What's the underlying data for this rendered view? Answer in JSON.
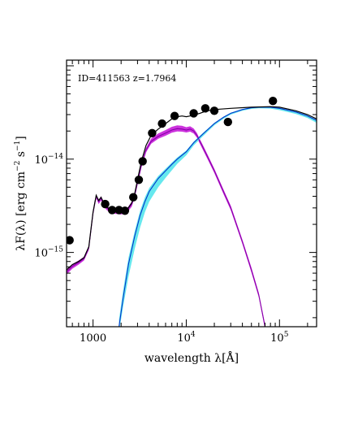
{
  "chart_data": {
    "type": "scatter",
    "title": "",
    "annotation": "ID=411563 z=1.7964",
    "xlabel": {
      "main": "wavelength λ[Å]"
    },
    "ylabel": {
      "main": "λF(λ) [erg cm",
      "sup1": "−2",
      "mid": " s",
      "sup2": "−1",
      "end": "]"
    },
    "x_scale": "log",
    "y_scale": "log",
    "xlim": [
      520,
      250000
    ],
    "ylim": [
      1.6e-16,
      1.15e-13
    ],
    "x_ticks": [
      {
        "value": 1000,
        "base": "1000",
        "exp": ""
      },
      {
        "value": 10000,
        "base": "10",
        "exp": "4"
      },
      {
        "value": 100000,
        "base": "10",
        "exp": "5"
      }
    ],
    "y_ticks": [
      {
        "value": 1e-15,
        "base": "10",
        "exp": "−15"
      },
      {
        "value": 1e-14,
        "base": "10",
        "exp": "−14"
      }
    ],
    "observed_points": {
      "x": [
        560,
        1350,
        1600,
        1900,
        2200,
        2700,
        3100,
        3400,
        4300,
        5500,
        7500,
        12000,
        16000,
        20000,
        28000,
        85000
      ],
      "y": [
        1.35e-15,
        3.3e-15,
        2.85e-15,
        2.85e-15,
        2.8e-15,
        3.9e-15,
        6e-15,
        9.5e-15,
        1.9e-14,
        2.4e-14,
        2.9e-14,
        3.1e-14,
        3.5e-14,
        3.3e-14,
        2.5e-14,
        4.2e-14
      ],
      "color": "#000000"
    },
    "series": [
      {
        "type": "line",
        "color": "#000000",
        "x": [
          520,
          600,
          700,
          800,
          900,
          1000,
          1080,
          1150,
          1220,
          1300,
          1400,
          1500,
          1700,
          2000,
          2300,
          2600,
          2800,
          3000,
          3300,
          3700,
          4200,
          5000,
          6000,
          7000,
          8000,
          9000,
          10000,
          11000,
          12500,
          14000,
          16000,
          20000,
          30000,
          50000,
          80000,
          100000,
          150000,
          200000,
          250000
        ],
        "y": [
          6.5e-16,
          7.4e-16,
          8e-16,
          8.8e-16,
          1.15e-15,
          2.7e-15,
          4.1e-15,
          3.6e-15,
          3.9e-15,
          3.4e-15,
          3.1e-15,
          2.9e-15,
          2.8e-15,
          2.75e-15,
          2.85e-15,
          3.4e-15,
          4.3e-15,
          6e-15,
          9.5e-15,
          1.4e-14,
          1.8e-14,
          2.1e-14,
          2.4e-14,
          2.7e-14,
          2.85e-14,
          2.9e-14,
          2.85e-14,
          2.9e-14,
          3e-14,
          3.1e-14,
          3.25e-14,
          3.4e-14,
          3.5e-14,
          3.6e-14,
          3.65e-14,
          3.6e-14,
          3.3e-14,
          3e-14,
          2.7e-14
        ]
      },
      {
        "type": "band",
        "color": "#cc33dd",
        "line_color": "#8800aa",
        "x": [
          520,
          600,
          700,
          800,
          900,
          1000,
          1080,
          1150,
          1220,
          1300,
          1400,
          1500,
          1700,
          2000,
          2300,
          2600,
          2800,
          3000,
          3300,
          3700,
          4200,
          5000,
          6000,
          7000,
          8000,
          9000,
          10000,
          11000,
          12000,
          13000,
          14000,
          15000,
          17000,
          20000,
          25000,
          30000,
          40000,
          50000,
          60000,
          70000
        ],
        "y": [
          6.2e-16,
          7.1e-16,
          7.8e-16,
          8.6e-16,
          1.12e-15,
          2.65e-15,
          4e-15,
          3.5e-15,
          3.8e-15,
          3.3e-15,
          3e-15,
          2.85e-15,
          2.75e-15,
          2.7e-15,
          2.8e-15,
          3.3e-15,
          4.1e-15,
          5.6e-15,
          8.6e-15,
          1.25e-14,
          1.55e-14,
          1.75e-14,
          1.9e-14,
          2.05e-14,
          2.12e-14,
          2.1e-14,
          2.05e-14,
          2.1e-14,
          2e-14,
          1.8e-14,
          1.55e-14,
          1.35e-14,
          1.05e-14,
          7.5e-15,
          4.5e-15,
          3e-15,
          1.3e-15,
          6.5e-16,
          3.5e-16,
          1.6e-16
        ],
        "y_low": [
          5.8e-16,
          6.7e-16,
          7.4e-16,
          8.2e-16,
          1.06e-15,
          2.5e-15,
          3.8e-15,
          3.3e-15,
          3.6e-15,
          3.1e-15,
          2.85e-15,
          2.7e-15,
          2.6e-15,
          2.55e-15,
          2.65e-15,
          3.1e-15,
          3.9e-15,
          5.3e-15,
          8.1e-15,
          1.18e-14,
          1.46e-14,
          1.65e-14,
          1.78e-14,
          1.92e-14,
          1.98e-14,
          1.97e-14,
          1.93e-14,
          1.97e-14,
          1.88e-14,
          1.7e-14,
          1.46e-14,
          1.27e-14,
          9.9e-15,
          7.1e-15,
          4.25e-15,
          2.83e-15,
          1.23e-15,
          6.1e-16,
          3.3e-16,
          1.5e-16
        ],
        "y_high": [
          6.6e-16,
          7.5e-16,
          8.2e-16,
          9e-16,
          1.18e-15,
          2.8e-15,
          4.2e-15,
          3.7e-15,
          4e-15,
          3.5e-15,
          3.15e-15,
          3e-15,
          2.9e-15,
          2.85e-15,
          2.95e-15,
          3.5e-15,
          4.35e-15,
          5.95e-15,
          9.1e-15,
          1.32e-14,
          1.66e-14,
          1.88e-14,
          2.05e-14,
          2.22e-14,
          2.3e-14,
          2.28e-14,
          2.2e-14,
          2.25e-14,
          2.13e-14,
          1.91e-14,
          1.64e-14,
          1.43e-14,
          1.11e-14,
          7.9e-15,
          4.75e-15,
          3.17e-15,
          1.37e-15,
          6.9e-16,
          3.7e-16,
          1.7e-16
        ]
      },
      {
        "type": "band",
        "color": "#66e8ee",
        "line_color": "#0033cc",
        "x": [
          1900,
          2100,
          2400,
          2800,
          3200,
          3600,
          4000,
          5000,
          6000,
          7000,
          8000,
          10000,
          12000,
          15000,
          20000,
          25000,
          30000,
          40000,
          50000,
          60000,
          80000,
          100000,
          150000,
          200000,
          250000
        ],
        "y": [
          1.6e-16,
          3.2e-16,
          7.5e-16,
          1.5e-15,
          2.5e-15,
          3.5e-15,
          4.5e-15,
          6.2e-15,
          7.5e-15,
          8.8e-15,
          1e-14,
          1.2e-14,
          1.5e-14,
          1.85e-14,
          2.4e-14,
          2.8e-14,
          3.1e-14,
          3.4e-14,
          3.55e-14,
          3.6e-14,
          3.6e-14,
          3.5e-14,
          3.2e-14,
          2.9e-14,
          2.6e-14
        ],
        "y_low": [
          1.4e-16,
          2.6e-16,
          5.5e-16,
          1.1e-15,
          1.85e-15,
          2.7e-15,
          3.5e-15,
          5e-15,
          6.3e-15,
          7.6e-15,
          8.9e-15,
          1.1e-14,
          1.4e-14,
          1.75e-14,
          2.3e-14,
          2.7e-14,
          3e-14,
          3.3e-14,
          3.45e-14,
          3.5e-14,
          3.48e-14,
          3.35e-14,
          3.05e-14,
          2.75e-14,
          2.45e-14
        ],
        "y_high": [
          1.9e-16,
          3.9e-16,
          8.8e-16,
          1.7e-15,
          2.8e-15,
          3.9e-15,
          4.9e-15,
          6.6e-15,
          7.9e-15,
          9.2e-15,
          1.04e-14,
          1.24e-14,
          1.54e-14,
          1.9e-14,
          2.45e-14,
          2.85e-14,
          3.15e-14,
          3.45e-14,
          3.6e-14,
          3.65e-14,
          3.65e-14,
          3.55e-14,
          3.25e-14,
          2.95e-14,
          2.65e-14
        ]
      }
    ]
  }
}
